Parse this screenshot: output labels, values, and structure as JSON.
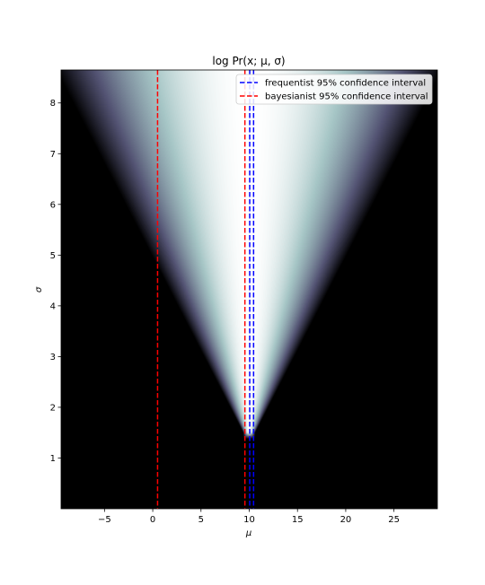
{
  "chart_data": {
    "type": "heatmap",
    "title": "log Pr(x; μ, σ)",
    "xlabel": "μ",
    "ylabel": "σ",
    "xlim": [
      -9.5,
      29.5
    ],
    "ylim": [
      0,
      8.65
    ],
    "xticks": [
      -5,
      0,
      5,
      10,
      15,
      20,
      25
    ],
    "xtick_labels": [
      "−5",
      "0",
      "5",
      "10",
      "15",
      "20",
      "25"
    ],
    "yticks": [
      1,
      2,
      3,
      4,
      5,
      6,
      7,
      8
    ],
    "ytick_labels": [
      "1",
      "2",
      "3",
      "4",
      "5",
      "6",
      "7",
      "8"
    ],
    "colormap": "bone",
    "grid": false,
    "legend_position": "top-right",
    "heatmap_model": {
      "center_mu": 10.0,
      "ridge_sigma": [
        1.5,
        8.65
      ],
      "half_width_at_bottom": 0.6,
      "half_width_at_top": 20.0
    },
    "series": [
      {
        "name": "frequentist 95% confidence interval",
        "color": "#0000ff",
        "linestyle": "dashed",
        "x": [
          10.05,
          10.45
        ]
      },
      {
        "name": "bayesianist 95% confidence interval",
        "color": "#ff0000",
        "linestyle": "dashed",
        "x": [
          0.5,
          9.55
        ]
      }
    ]
  }
}
